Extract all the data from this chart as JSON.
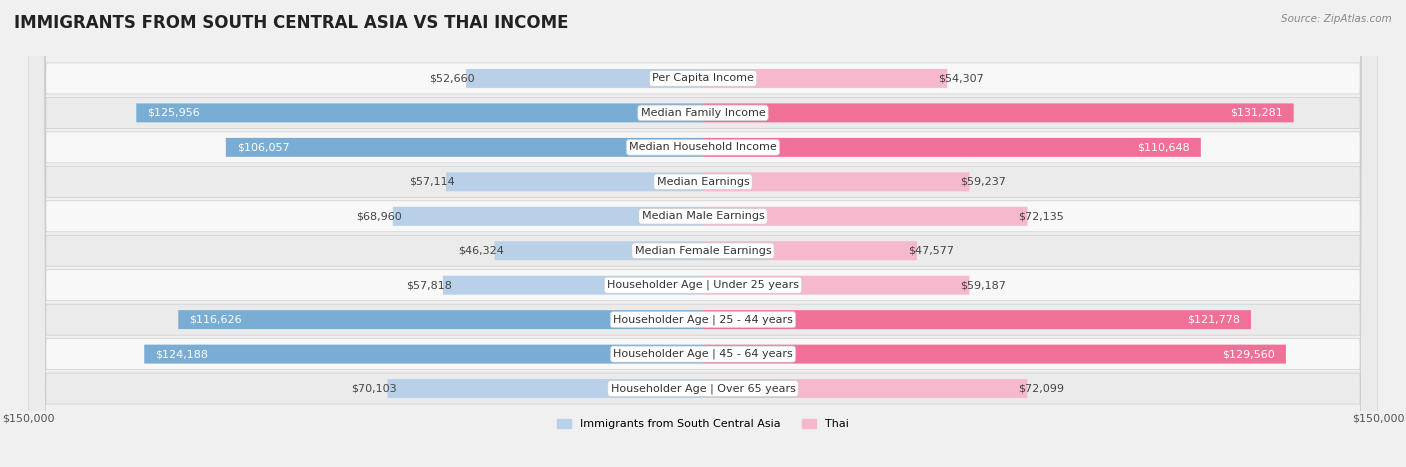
{
  "title": "IMMIGRANTS FROM SOUTH CENTRAL ASIA VS THAI INCOME",
  "source": "Source: ZipAtlas.com",
  "categories": [
    "Per Capita Income",
    "Median Family Income",
    "Median Household Income",
    "Median Earnings",
    "Median Male Earnings",
    "Median Female Earnings",
    "Householder Age | Under 25 years",
    "Householder Age | 25 - 44 years",
    "Householder Age | 45 - 64 years",
    "Householder Age | Over 65 years"
  ],
  "left_values": [
    52660,
    125956,
    106057,
    57114,
    68960,
    46324,
    57818,
    116626,
    124188,
    70103
  ],
  "right_values": [
    54307,
    131281,
    110648,
    59237,
    72135,
    47577,
    59187,
    121778,
    129560,
    72099
  ],
  "left_labels": [
    "$52,660",
    "$125,956",
    "$106,057",
    "$57,114",
    "$68,960",
    "$46,324",
    "$57,818",
    "$116,626",
    "$124,188",
    "$70,103"
  ],
  "right_labels": [
    "$54,307",
    "$131,281",
    "$110,648",
    "$59,237",
    "$72,135",
    "$47,577",
    "$59,187",
    "$121,778",
    "$129,560",
    "$72,099"
  ],
  "max_value": 150000,
  "left_color_light": "#b8d0e8",
  "left_color_dark": "#7aadd4",
  "right_color_light": "#f5b8cc",
  "right_color_dark": "#f07098",
  "label_color_outside": "#555555",
  "label_color_inside": "#ffffff",
  "legend_left": "Immigrants from South Central Asia",
  "legend_right": "Thai",
  "bg_color": "#f0f0f0",
  "row_color_odd": "#f8f8f8",
  "row_color_even": "#ebebeb",
  "title_fontsize": 12,
  "label_fontsize": 8,
  "category_fontsize": 8,
  "axis_label_fontsize": 8,
  "inside_threshold": 80000
}
